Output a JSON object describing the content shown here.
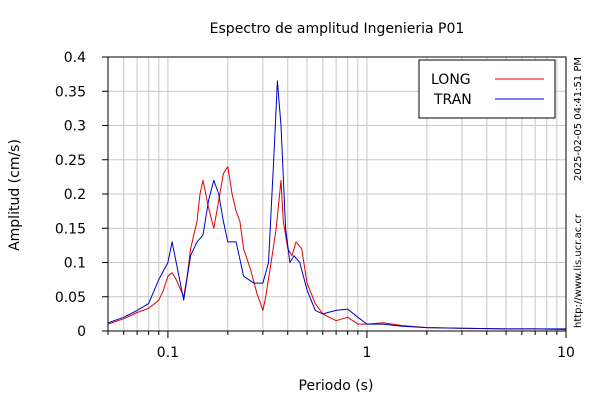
{
  "chart_data": {
    "type": "line",
    "title": "Espectro de amplitud Ingenieria P01",
    "xlabel": "Periodo (s)",
    "ylabel": "Amplitud (cm/s)",
    "xscale": "log",
    "xlim": [
      0.05,
      10
    ],
    "ylim": [
      0,
      0.4
    ],
    "x_ticks": [
      0.1,
      1,
      10
    ],
    "x_tick_labels": [
      "0.1",
      "1",
      "10"
    ],
    "y_ticks": [
      0,
      0.05,
      0.1,
      0.15,
      0.2,
      0.25,
      0.3,
      0.35,
      0.4
    ],
    "y_tick_labels": [
      "0",
      "0.05",
      "0.1",
      "0.15",
      "0.2",
      "0.25",
      "0.3",
      "0.35",
      "0.4"
    ],
    "grid": true,
    "legend_position": "top-right",
    "series": [
      {
        "name": "LONG",
        "color": "#e00000",
        "points": [
          [
            0.05,
            0.01
          ],
          [
            0.06,
            0.018
          ],
          [
            0.07,
            0.027
          ],
          [
            0.08,
            0.033
          ],
          [
            0.09,
            0.045
          ],
          [
            0.095,
            0.06
          ],
          [
            0.1,
            0.08
          ],
          [
            0.105,
            0.085
          ],
          [
            0.11,
            0.075
          ],
          [
            0.12,
            0.05
          ],
          [
            0.125,
            0.08
          ],
          [
            0.13,
            0.12
          ],
          [
            0.14,
            0.16
          ],
          [
            0.145,
            0.2
          ],
          [
            0.15,
            0.22
          ],
          [
            0.16,
            0.18
          ],
          [
            0.17,
            0.15
          ],
          [
            0.18,
            0.19
          ],
          [
            0.19,
            0.23
          ],
          [
            0.2,
            0.24
          ],
          [
            0.21,
            0.2
          ],
          [
            0.22,
            0.175
          ],
          [
            0.23,
            0.16
          ],
          [
            0.24,
            0.12
          ],
          [
            0.26,
            0.09
          ],
          [
            0.28,
            0.055
          ],
          [
            0.3,
            0.03
          ],
          [
            0.31,
            0.05
          ],
          [
            0.33,
            0.1
          ],
          [
            0.35,
            0.15
          ],
          [
            0.37,
            0.22
          ],
          [
            0.38,
            0.16
          ],
          [
            0.4,
            0.12
          ],
          [
            0.42,
            0.11
          ],
          [
            0.44,
            0.13
          ],
          [
            0.47,
            0.12
          ],
          [
            0.5,
            0.07
          ],
          [
            0.55,
            0.04
          ],
          [
            0.6,
            0.025
          ],
          [
            0.7,
            0.015
          ],
          [
            0.8,
            0.02
          ],
          [
            0.9,
            0.01
          ],
          [
            1.0,
            0.01
          ],
          [
            1.2,
            0.012
          ],
          [
            1.5,
            0.008
          ],
          [
            2.0,
            0.005
          ],
          [
            3.0,
            0.004
          ],
          [
            5.0,
            0.003
          ],
          [
            7.0,
            0.003
          ],
          [
            10.0,
            0.002
          ]
        ]
      },
      {
        "name": "TRAN",
        "color": "#0000c8",
        "points": [
          [
            0.05,
            0.012
          ],
          [
            0.06,
            0.02
          ],
          [
            0.07,
            0.03
          ],
          [
            0.08,
            0.04
          ],
          [
            0.09,
            0.075
          ],
          [
            0.1,
            0.1
          ],
          [
            0.105,
            0.13
          ],
          [
            0.11,
            0.1
          ],
          [
            0.12,
            0.045
          ],
          [
            0.13,
            0.11
          ],
          [
            0.14,
            0.13
          ],
          [
            0.15,
            0.14
          ],
          [
            0.16,
            0.19
          ],
          [
            0.17,
            0.22
          ],
          [
            0.18,
            0.2
          ],
          [
            0.19,
            0.16
          ],
          [
            0.2,
            0.13
          ],
          [
            0.22,
            0.13
          ],
          [
            0.24,
            0.08
          ],
          [
            0.27,
            0.07
          ],
          [
            0.3,
            0.07
          ],
          [
            0.32,
            0.1
          ],
          [
            0.34,
            0.25
          ],
          [
            0.355,
            0.365
          ],
          [
            0.37,
            0.3
          ],
          [
            0.39,
            0.15
          ],
          [
            0.41,
            0.1
          ],
          [
            0.43,
            0.11
          ],
          [
            0.46,
            0.1
          ],
          [
            0.5,
            0.06
          ],
          [
            0.55,
            0.03
          ],
          [
            0.6,
            0.025
          ],
          [
            0.7,
            0.03
          ],
          [
            0.8,
            0.032
          ],
          [
            0.9,
            0.02
          ],
          [
            1.0,
            0.01
          ],
          [
            1.2,
            0.01
          ],
          [
            1.5,
            0.007
          ],
          [
            2.0,
            0.005
          ],
          [
            3.0,
            0.004
          ],
          [
            5.0,
            0.003
          ],
          [
            7.0,
            0.003
          ],
          [
            10.0,
            0.003
          ]
        ]
      }
    ]
  },
  "side_labels": {
    "timestamp": "2025-02-05 04:41:51 PM",
    "url": "http://www.lis.ucr.ac.cr"
  }
}
